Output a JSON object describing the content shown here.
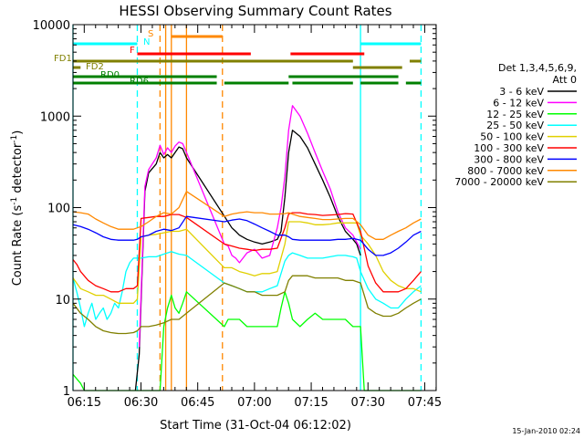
{
  "chart_data": {
    "type": "line",
    "title": "HESSI Observing Summary Count Rates",
    "xlabel": "Start Time (31-Oct-04 06:12:02)",
    "ylabel_main": "Count Rate (s",
    "ylabel_sup": "-1",
    "ylabel_mid": " detector",
    "ylabel_end": ")",
    "yscale": "log",
    "ylim": [
      1,
      10000
    ],
    "xlim_minutes": [
      0,
      96
    ],
    "x_ticks": [
      "06:15",
      "06:30",
      "06:45",
      "07:00",
      "07:15",
      "07:30",
      "07:45"
    ],
    "y_ticks": [
      "1",
      "10",
      "100",
      "1000",
      "10000"
    ],
    "footer_date": "15-Jan-2010 02:24",
    "legend": {
      "header1": "Det 1,3,4,5,6,9,",
      "header2": "Att 0",
      "placement": "right"
    },
    "flags": [
      {
        "label": "S",
        "color": "#ff8800"
      },
      {
        "label": "N",
        "color": "#00ffff"
      },
      {
        "label": "F",
        "color": "#ff0000"
      },
      {
        "label": "FD1",
        "color": "#808000"
      },
      {
        "label": "FD2",
        "color": "#808000"
      },
      {
        "label": "RD0",
        "color": "#008000"
      },
      {
        "label": "RD6",
        "color": "#008000"
      }
    ],
    "flag_bars": [
      {
        "flag": "S",
        "color": "#ff8800",
        "start": 26.0,
        "end": 39.5
      },
      {
        "flag": "N",
        "color": "#00ffff",
        "start": 0.0,
        "end": 17.0
      },
      {
        "flag": "N",
        "color": "#00ffff",
        "start": 76.0,
        "end": 92.0
      },
      {
        "flag": "F",
        "color": "#ff0000",
        "start": 17.0,
        "end": 47.0
      },
      {
        "flag": "F",
        "color": "#ff0000",
        "start": 57.5,
        "end": 77.0
      },
      {
        "flag": "FD1",
        "color": "#808000",
        "start": 0.0,
        "end": 74.0
      },
      {
        "flag": "FD1",
        "color": "#808000",
        "start": 89.0,
        "end": 92.0
      },
      {
        "flag": "FD2",
        "color": "#808000",
        "start": 0.0,
        "end": 2.0
      },
      {
        "flag": "FD2",
        "color": "#808000",
        "start": 74.0,
        "end": 87.0
      },
      {
        "flag": "RD0",
        "color": "#008000",
        "start": 0.0,
        "end": 38.0
      },
      {
        "flag": "RD0",
        "color": "#008000",
        "start": 57.0,
        "end": 86.0
      },
      {
        "flag": "RD6",
        "color": "#008000",
        "start": 0.0,
        "end": 38.0
      },
      {
        "flag": "RD6",
        "color": "#008000",
        "start": 40.0,
        "end": 57.0
      },
      {
        "flag": "RD6",
        "color": "#008000",
        "start": 58.0,
        "end": 74.0
      },
      {
        "flag": "RD6",
        "color": "#008000",
        "start": 76.0,
        "end": 86.0
      },
      {
        "flag": "RD6",
        "color": "#008000",
        "start": 88.0,
        "end": 92.0
      }
    ],
    "vlines": [
      {
        "t": 0.0,
        "color": "#00ffff",
        "style": "solid"
      },
      {
        "t": 17.0,
        "color": "#00ffff",
        "style": "dash"
      },
      {
        "t": 23.0,
        "color": "#ff8800",
        "style": "dash"
      },
      {
        "t": 24.5,
        "color": "#ff8800",
        "style": "solid"
      },
      {
        "t": 26.0,
        "color": "#ff8800",
        "style": "solid"
      },
      {
        "t": 30.0,
        "color": "#ff8800",
        "style": "solid"
      },
      {
        "t": 39.5,
        "color": "#ff8800",
        "style": "dash"
      },
      {
        "t": 76.0,
        "color": "#00ffff",
        "style": "solid"
      },
      {
        "t": 92.0,
        "color": "#00ffff",
        "style": "dash"
      }
    ],
    "series": [
      {
        "name": "3 - 6 keV",
        "color": "#000000",
        "x": [
          16.5,
          17.5,
          19,
          20,
          22,
          23,
          24,
          25,
          26,
          27,
          28,
          29,
          30,
          42,
          43,
          44,
          46,
          48,
          50,
          52,
          54,
          55,
          56,
          57,
          58,
          60,
          62,
          64,
          66,
          68,
          70,
          72,
          74,
          75,
          76
        ],
        "y": [
          1,
          2.5,
          150,
          240,
          300,
          400,
          350,
          380,
          350,
          400,
          460,
          440,
          350,
          60,
          55,
          50,
          45,
          42,
          40,
          42,
          45,
          55,
          130,
          400,
          700,
          600,
          450,
          300,
          200,
          130,
          80,
          55,
          45,
          40,
          30
        ]
      },
      {
        "name": "6 - 12 keV",
        "color": "#ff00ff",
        "x": [
          17.5,
          19,
          20,
          22,
          23,
          24,
          25,
          26,
          27,
          28,
          29,
          30,
          40,
          41,
          42,
          43,
          44,
          46,
          48,
          50,
          52,
          54,
          55,
          56,
          57,
          58,
          60,
          62,
          64,
          66,
          68,
          70,
          72,
          74,
          75,
          76
        ],
        "y": [
          3,
          170,
          260,
          350,
          480,
          380,
          450,
          400,
          470,
          520,
          500,
          400,
          40,
          38,
          30,
          28,
          25,
          32,
          35,
          28,
          30,
          60,
          100,
          220,
          700,
          1300,
          1000,
          650,
          400,
          250,
          160,
          90,
          60,
          50,
          42,
          35
        ]
      },
      {
        "name": "12 - 25 keV",
        "color": "#00ff00",
        "x": [
          0,
          2,
          3,
          12,
          13,
          14,
          16,
          17,
          18,
          20,
          22,
          23,
          24,
          25,
          26,
          27,
          28,
          29,
          30,
          40,
          41,
          42,
          44,
          46,
          48,
          50,
          52,
          54,
          55,
          56,
          57,
          58,
          60,
          62,
          64,
          66,
          68,
          70,
          72,
          74,
          76,
          77,
          78,
          80,
          82,
          84,
          86,
          88,
          90,
          92
        ],
        "y": [
          1.5,
          1.2,
          1,
          1,
          1,
          1,
          1,
          1,
          1,
          1,
          1,
          1,
          5,
          8,
          11,
          8,
          7,
          9,
          12,
          5,
          6,
          6,
          6,
          5,
          5,
          5,
          5,
          5,
          8,
          12,
          9,
          6,
          5,
          6,
          7,
          6,
          6,
          6,
          6,
          5,
          5,
          1,
          1,
          1,
          1,
          1,
          1,
          1,
          1,
          1
        ]
      },
      {
        "name": "25 - 50 keV",
        "color": "#00ffff",
        "x": [
          0,
          1,
          2,
          3,
          4,
          5,
          6,
          7,
          8,
          9,
          10,
          11,
          12,
          13,
          14,
          15,
          16,
          17,
          18,
          20,
          22,
          24,
          26,
          28,
          30,
          40,
          42,
          44,
          46,
          48,
          50,
          52,
          54,
          56,
          57,
          58,
          60,
          62,
          64,
          66,
          68,
          70,
          72,
          74,
          75,
          76,
          78,
          80,
          82,
          84,
          86,
          88,
          90,
          92
        ],
        "y": [
          17,
          12,
          8,
          5,
          7,
          9,
          6,
          7,
          8,
          6,
          7,
          9,
          8,
          12,
          20,
          25,
          28,
          28,
          28,
          29,
          29,
          31,
          33,
          31,
          30,
          15,
          14,
          13,
          12,
          12,
          12,
          13,
          14,
          26,
          30,
          32,
          30,
          28,
          28,
          28,
          29,
          30,
          30,
          29,
          28,
          20,
          13,
          10,
          9,
          8,
          8,
          10,
          12,
          14
        ]
      },
      {
        "name": "50 - 100 keV",
        "color": "#e0d000",
        "x": [
          0,
          2,
          4,
          6,
          8,
          10,
          12,
          14,
          16,
          17,
          18,
          20,
          22,
          24,
          26,
          28,
          30,
          40,
          42,
          44,
          46,
          48,
          50,
          52,
          54,
          56,
          57,
          58,
          60,
          62,
          64,
          66,
          68,
          70,
          72,
          74,
          75,
          76,
          78,
          80,
          82,
          84,
          86,
          88,
          90,
          92
        ],
        "y": [
          17,
          13,
          12,
          11,
          11,
          10,
          9,
          9,
          9,
          10,
          48,
          50,
          51,
          53,
          55,
          55,
          58,
          22,
          22,
          20,
          19,
          18,
          19,
          19,
          20,
          40,
          70,
          70,
          70,
          68,
          65,
          65,
          66,
          68,
          68,
          68,
          68,
          50,
          40,
          30,
          20,
          16,
          14,
          13,
          13,
          12
        ]
      },
      {
        "name": "100 - 300 keV",
        "color": "#ff0000",
        "x": [
          0,
          1,
          2,
          4,
          6,
          8,
          10,
          12,
          14,
          16,
          17,
          18,
          20,
          22,
          24,
          26,
          28,
          30,
          40,
          42,
          44,
          46,
          48,
          50,
          52,
          54,
          56,
          57,
          58,
          60,
          62,
          64,
          66,
          68,
          70,
          72,
          74,
          76,
          78,
          80,
          82,
          84,
          86,
          88,
          90,
          92
        ],
        "y": [
          27,
          24,
          20,
          16,
          14,
          13,
          12,
          12,
          13,
          13,
          14,
          76,
          78,
          80,
          80,
          84,
          84,
          78,
          40,
          38,
          36,
          35,
          34,
          35,
          35,
          36,
          60,
          85,
          88,
          88,
          85,
          84,
          82,
          83,
          84,
          86,
          85,
          55,
          23,
          15,
          12,
          12,
          12,
          13,
          16,
          20
        ]
      },
      {
        "name": "300 - 800 keV",
        "color": "#0000ff",
        "x": [
          0,
          2,
          4,
          6,
          8,
          10,
          12,
          14,
          16,
          17,
          18,
          20,
          22,
          24,
          26,
          28,
          30,
          40,
          42,
          44,
          46,
          48,
          50,
          52,
          54,
          56,
          57,
          58,
          60,
          62,
          64,
          66,
          68,
          70,
          72,
          74,
          76,
          78,
          80,
          82,
          84,
          86,
          88,
          90,
          92
        ],
        "y": [
          65,
          62,
          58,
          53,
          48,
          45,
          44,
          44,
          44,
          45,
          48,
          50,
          55,
          58,
          56,
          60,
          80,
          70,
          73,
          75,
          72,
          66,
          60,
          55,
          50,
          50,
          48,
          45,
          44,
          44,
          44,
          44,
          44,
          45,
          45,
          46,
          44,
          35,
          30,
          30,
          32,
          36,
          42,
          50,
          55
        ]
      },
      {
        "name": "800 - 7000 keV",
        "color": "#ff8800",
        "x": [
          0,
          2,
          4,
          6,
          8,
          10,
          12,
          14,
          16,
          17,
          18,
          20,
          22,
          24,
          26,
          28,
          30,
          40,
          42,
          44,
          46,
          48,
          50,
          52,
          54,
          56,
          57,
          58,
          60,
          62,
          64,
          66,
          68,
          70,
          72,
          74,
          76,
          78,
          80,
          82,
          84,
          86,
          88,
          90,
          92
        ],
        "y": [
          90,
          88,
          85,
          75,
          68,
          62,
          58,
          58,
          58,
          60,
          62,
          70,
          80,
          88,
          85,
          100,
          150,
          80,
          85,
          88,
          90,
          88,
          88,
          85,
          85,
          86,
          88,
          85,
          80,
          78,
          76,
          74,
          74,
          75,
          76,
          76,
          65,
          50,
          45,
          45,
          50,
          55,
          60,
          68,
          75
        ]
      },
      {
        "name": "7000 - 20000 keV",
        "color": "#808000",
        "x": [
          0,
          2,
          4,
          6,
          8,
          10,
          12,
          14,
          16,
          17,
          18,
          20,
          22,
          24,
          26,
          28,
          30,
          40,
          42,
          44,
          46,
          48,
          50,
          52,
          54,
          56,
          57,
          58,
          60,
          62,
          64,
          66,
          68,
          70,
          72,
          74,
          76,
          78,
          80,
          82,
          84,
          86,
          88,
          90,
          92
        ],
        "y": [
          9,
          7,
          6,
          5,
          4.5,
          4.3,
          4.2,
          4.2,
          4.3,
          4.5,
          5,
          5,
          5.2,
          5.5,
          6,
          6,
          7,
          15,
          14,
          13,
          12,
          12,
          11,
          11,
          11,
          12,
          16,
          18,
          18,
          18,
          17,
          17,
          17,
          17,
          16,
          16,
          15,
          8,
          7,
          6.5,
          6.5,
          7,
          8,
          9,
          10
        ]
      }
    ]
  }
}
